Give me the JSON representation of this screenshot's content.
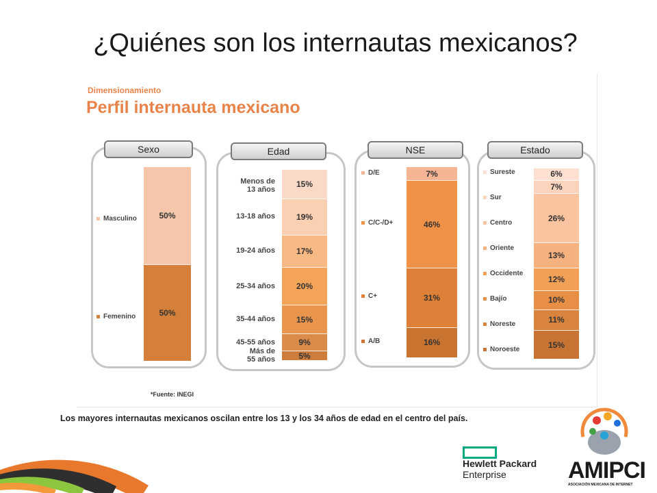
{
  "slide": {
    "title": "¿Quiénes son los internautas mexicanos?",
    "caption": "Los mayores internautas mexicanos oscilan entre los 13 y los 34 años de edad en el centro del país."
  },
  "figure": {
    "subtitle": "Dimensionamiento",
    "title": "Perfil internauta mexicano",
    "source": "*Fuente: INEGI"
  },
  "logos": {
    "hpe_line1": "Hewlett Packard",
    "hpe_line2": "Enterprise",
    "amipci_word": "AMIPCI",
    "amipci_sub": "ASOCIACIÓN MEXICANA DE INTERNET"
  },
  "chart_data": [
    {
      "type": "bar",
      "stacked": true,
      "title": "Sexo",
      "categories": [
        "Masculino",
        "Femenino"
      ],
      "values": [
        50,
        50
      ],
      "labels": [
        "50%",
        "50%"
      ],
      "colors": [
        "#f6c6aa",
        "#d4803a"
      ]
    },
    {
      "type": "bar",
      "stacked": true,
      "title": "Edad",
      "categories": [
        "Menos de 13 años",
        "13-18 años",
        "19-24 años",
        "25-34 años",
        "35-44 años",
        "45-55 años",
        "Más de 55 años"
      ],
      "category_lines": [
        [
          "Menos de",
          "13 años"
        ],
        [
          "13-18 años"
        ],
        [
          "19-24 años"
        ],
        [
          "25-34 años"
        ],
        [
          "35-44 años"
        ],
        [
          "45-55 años"
        ],
        [
          "Más de",
          "55 años"
        ]
      ],
      "values": [
        15,
        19,
        17,
        20,
        15,
        9,
        5
      ],
      "labels": [
        "15%",
        "19%",
        "17%",
        "20%",
        "15%",
        "9%",
        "5%"
      ],
      "colors": [
        "#fad9c6",
        "#fbcfb2",
        "#f8b985",
        "#f4a459",
        "#e9954d",
        "#dc8c4a",
        "#cd7c3c"
      ]
    },
    {
      "type": "bar",
      "stacked": true,
      "title": "NSE",
      "categories": [
        "D/E",
        "C/C-/D+",
        "C+",
        "A/B"
      ],
      "values": [
        7,
        46,
        31,
        16
      ],
      "labels": [
        "7%",
        "46%",
        "31%",
        "16%"
      ],
      "colors": [
        "#f5b493",
        "#ef9146",
        "#df8038",
        "#c87330"
      ]
    },
    {
      "type": "bar",
      "stacked": true,
      "title": "Estado",
      "categories": [
        "Sureste",
        "Sur",
        "Centro",
        "Oriente",
        "Occidente",
        "Bajío",
        "Noreste",
        "Noroeste"
      ],
      "values": [
        6,
        7,
        26,
        13,
        12,
        10,
        11,
        15
      ],
      "labels": [
        "6%",
        "7%",
        "26%",
        "13%",
        "12%",
        "10%",
        "11%",
        "15%"
      ],
      "colors": [
        "#fde0d1",
        "#fcd4be",
        "#f9c49f",
        "#f6b27e",
        "#f1a055",
        "#e79045",
        "#d9843e",
        "#c67333"
      ]
    }
  ]
}
